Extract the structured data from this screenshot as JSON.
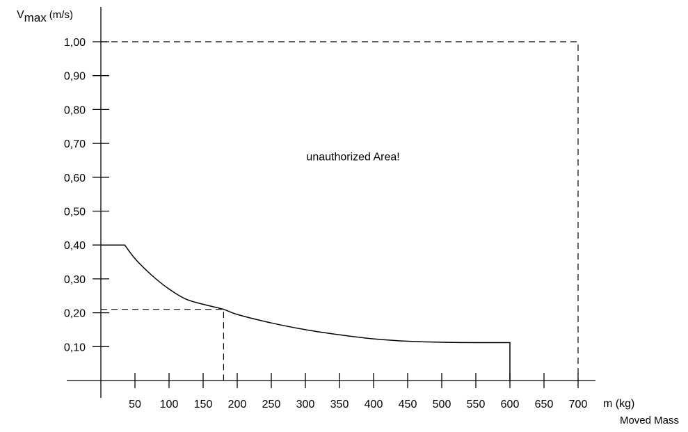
{
  "chart_data": {
    "type": "line",
    "title": "",
    "ylabel": {
      "main": "V",
      "subscript": "max",
      "unit": "(m/s)"
    },
    "xlabel": {
      "main": "m (kg)",
      "sub": "Moved Mass"
    },
    "xlim": [
      0,
      740
    ],
    "ylim": [
      0,
      1.08
    ],
    "x_ticks": [
      50,
      100,
      150,
      200,
      250,
      300,
      350,
      400,
      450,
      500,
      550,
      600,
      650,
      700
    ],
    "x_tick_labels": [
      "50",
      "100",
      "150",
      "200",
      "250",
      "300",
      "350",
      "400",
      "450",
      "500",
      "550",
      "600",
      "650",
      "700"
    ],
    "y_ticks": [
      0.1,
      0.2,
      0.3,
      0.4,
      0.5,
      0.6,
      0.7,
      0.8,
      0.9,
      1.0
    ],
    "y_tick_labels": [
      "0,10",
      "0,20",
      "0,30",
      "0,40",
      "0,50",
      "0,60",
      "0,70",
      "0,80",
      "0,90",
      "1,00"
    ],
    "grid": false,
    "series": [
      {
        "style": "solid",
        "color": "#000000",
        "x": [
          0,
          35,
          50,
          75,
          100,
          125,
          150,
          180,
          200,
          250,
          300,
          350,
          400,
          450,
          500,
          550,
          600,
          600
        ],
        "y": [
          0.4,
          0.4,
          0.36,
          0.31,
          0.27,
          0.24,
          0.225,
          0.21,
          0.195,
          0.17,
          0.15,
          0.135,
          0.123,
          0.116,
          0.113,
          0.112,
          0.112,
          0
        ]
      }
    ],
    "reference_lines": [
      {
        "style": "dashed",
        "x": [
          0,
          700,
          700
        ],
        "y": [
          1.0,
          1.0,
          0
        ]
      },
      {
        "style": "dashed",
        "x": [
          0,
          180,
          180
        ],
        "y": [
          0.21,
          0.21,
          0
        ]
      }
    ],
    "annotations": [
      {
        "text": "unauthorized Area!",
        "x": 370,
        "y": 0.65
      }
    ]
  }
}
